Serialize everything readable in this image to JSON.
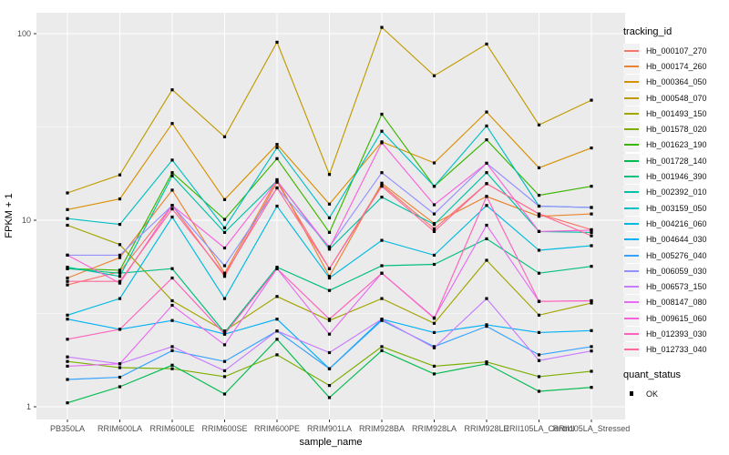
{
  "figure": {
    "x_axis_title": "sample_name",
    "y_axis_title": "FPKM + 1",
    "y_ticks": [
      {
        "label": "1",
        "value": 1
      },
      {
        "label": "10",
        "value": 10
      },
      {
        "label": "100",
        "value": 100
      }
    ],
    "legend1_title": "tracking_id",
    "legend2_title": "quant_status",
    "legend2_items": [
      {
        "label": "OK",
        "marker": "black-square"
      }
    ],
    "panel_background": "#EBEBEB",
    "gridline_color": "#FFFFFF",
    "tick_text_color": "#4D4D4D",
    "marker_color": "#000000"
  },
  "chart_data": {
    "type": "line",
    "title": "",
    "xlabel": "sample_name",
    "ylabel": "FPKM + 1",
    "yscale": "log10",
    "ylim": [
      0.75,
      130
    ],
    "grid": "white major and minor on gray panel",
    "legend_position": "right",
    "point_marker": "small black square (quant_status = OK)",
    "x": [
      "PB350LA",
      "RRIM600LA",
      "RRIM600LE",
      "RRIM600SE",
      "RRIM600PE",
      "RRIM901LA",
      "RRIM928BA",
      "RRIM928LA",
      "RRIM928LE",
      "RRII105LA_Control",
      "RRII105LA_Stressed"
    ],
    "series": [
      {
        "name": "Hb_000107_270",
        "color": "#F8766D",
        "values": [
          4.5,
          5.3,
          12.0,
          5.0,
          16.0,
          5.5,
          15.5,
          9.0,
          15.7,
          10.8,
          8.9
        ]
      },
      {
        "name": "Hb_000174_260",
        "color": "#EA8331",
        "values": [
          4.9,
          6.3,
          14.5,
          5.2,
          16.5,
          5.0,
          15.8,
          9.6,
          13.4,
          10.5,
          10.8
        ]
      },
      {
        "name": "Hb_000364_050",
        "color": "#D89000",
        "values": [
          11.4,
          13.0,
          33.0,
          12.9,
          25.5,
          12.2,
          26.3,
          20.3,
          38.0,
          19.1,
          24.4
        ]
      },
      {
        "name": "Hb_000548_070",
        "color": "#C09B00",
        "values": [
          14.0,
          17.5,
          50.0,
          28.0,
          90.0,
          17.6,
          108.0,
          59.5,
          88.0,
          32.4,
          44.0
        ]
      },
      {
        "name": "Hb_001493_150",
        "color": "#A3A500",
        "values": [
          9.4,
          7.4,
          3.7,
          2.55,
          3.9,
          2.9,
          3.8,
          2.8,
          6.1,
          3.1,
          3.6
        ]
      },
      {
        "name": "Hb_001578_020",
        "color": "#7CAE00",
        "values": [
          1.75,
          1.62,
          1.6,
          1.45,
          1.9,
          1.3,
          2.1,
          1.65,
          1.74,
          1.45,
          1.55
        ]
      },
      {
        "name": "Hb_001623_190",
        "color": "#39B600",
        "values": [
          5.5,
          5.4,
          18.0,
          10.1,
          21.4,
          8.6,
          37.0,
          15.2,
          27.0,
          13.6,
          15.2
        ]
      },
      {
        "name": "Hb_001728_140",
        "color": "#00BB4E",
        "values": [
          1.05,
          1.28,
          1.67,
          1.17,
          2.3,
          1.12,
          2.0,
          1.5,
          1.7,
          1.21,
          1.27
        ]
      },
      {
        "name": "Hb_001946_390",
        "color": "#00BF7D",
        "values": [
          5.5,
          5.2,
          5.5,
          2.5,
          5.6,
          4.2,
          5.7,
          5.8,
          7.95,
          5.2,
          5.66
        ]
      },
      {
        "name": "Hb_002392_010",
        "color": "#00C1A3",
        "values": [
          5.6,
          5.0,
          17.3,
          8.6,
          16.3,
          7.0,
          13.3,
          9.5,
          18.0,
          8.7,
          8.6
        ]
      },
      {
        "name": "Hb_003159_050",
        "color": "#00BFC4",
        "values": [
          10.2,
          9.5,
          21.0,
          9.1,
          24.5,
          10.3,
          30.0,
          15.2,
          32.0,
          11.9,
          11.7
        ]
      },
      {
        "name": "Hb_004216_060",
        "color": "#00BAE0",
        "values": [
          3.1,
          3.8,
          10.4,
          3.8,
          11.9,
          4.9,
          7.8,
          6.5,
          12.0,
          6.9,
          7.3
        ]
      },
      {
        "name": "Hb_004644_030",
        "color": "#00B0F6",
        "values": [
          2.95,
          2.6,
          2.9,
          2.45,
          2.95,
          1.6,
          2.95,
          2.5,
          2.75,
          2.5,
          2.56
        ]
      },
      {
        "name": "Hb_005276_040",
        "color": "#35A2FF",
        "values": [
          1.4,
          1.44,
          2.0,
          1.75,
          2.55,
          1.6,
          2.9,
          2.1,
          2.7,
          1.9,
          2.1
        ]
      },
      {
        "name": "Hb_006059_030",
        "color": "#9590FF",
        "values": [
          6.5,
          6.5,
          12.0,
          5.7,
          14.9,
          7.2,
          18.0,
          10.8,
          20.2,
          11.9,
          11.7
        ]
      },
      {
        "name": "Hb_006573_150",
        "color": "#C77CFF",
        "values": [
          1.85,
          1.7,
          2.1,
          1.56,
          2.55,
          1.95,
          2.95,
          2.07,
          3.8,
          1.77,
          1.99
        ]
      },
      {
        "name": "Hb_008147_080",
        "color": "#E76BF3",
        "values": [
          1.65,
          1.7,
          3.5,
          2.15,
          5.5,
          2.45,
          5.2,
          3.0,
          9.4,
          3.67,
          3.7
        ]
      },
      {
        "name": "Hb_009615_060",
        "color": "#FA62DB",
        "values": [
          6.5,
          4.6,
          12.0,
          7.1,
          16.3,
          7.1,
          26.0,
          12.1,
          20.2,
          8.7,
          8.85
        ]
      },
      {
        "name": "Hb_012393_030",
        "color": "#FF62BC",
        "values": [
          2.3,
          2.6,
          4.9,
          2.45,
          5.5,
          2.95,
          5.2,
          2.98,
          13.4,
          3.67,
          3.7
        ]
      },
      {
        "name": "Hb_012733_040",
        "color": "#FF6A98",
        "values": [
          4.7,
          4.7,
          11.5,
          5.1,
          14.9,
          5.5,
          15.2,
          8.7,
          15.7,
          10.8,
          8.25
        ]
      }
    ]
  }
}
